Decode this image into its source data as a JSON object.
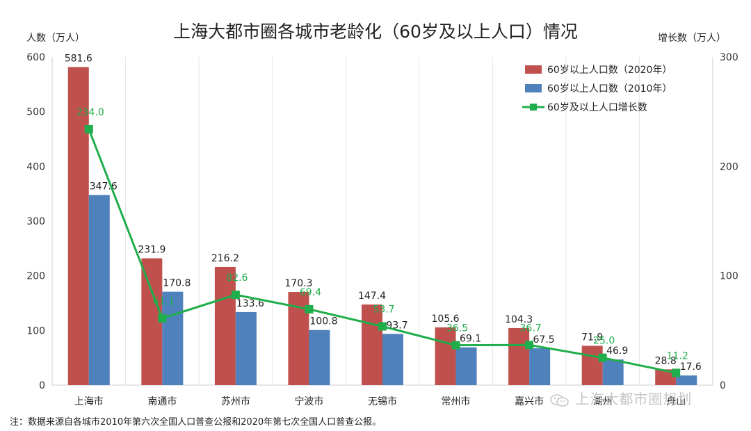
{
  "chart_data": {
    "type": "bar",
    "title": "上海大都市圈各城市老龄化（60岁及以上人口）情况",
    "ylabel": "人数（万人）",
    "y2label": "增长数（万人）",
    "ylim": [
      0,
      600
    ],
    "y2lim": [
      0,
      300
    ],
    "yticks": [
      0,
      100,
      200,
      300,
      400,
      500,
      600
    ],
    "y2ticks": [
      0,
      100,
      200,
      300
    ],
    "categories": [
      "上海市",
      "南通市",
      "苏州市",
      "宁波市",
      "无锡市",
      "常州市",
      "嘉兴市",
      "湖州",
      "舟山"
    ],
    "series": [
      {
        "name": "60岁以上人口数（2020年）",
        "type": "bar",
        "axis": "left",
        "color": "#c0504d",
        "values": [
          581.6,
          231.9,
          216.2,
          170.3,
          147.4,
          105.6,
          104.3,
          71.9,
          28.8
        ]
      },
      {
        "name": "60岁以上人口数（2010年）",
        "type": "bar",
        "axis": "left",
        "color": "#4f81bd",
        "values": [
          347.6,
          170.8,
          133.6,
          100.8,
          93.7,
          69.1,
          67.5,
          46.9,
          17.6
        ]
      },
      {
        "name": "60岁及以上人口增长数",
        "type": "line",
        "axis": "right",
        "color": "#1fae4b",
        "values": [
          234.0,
          61.1,
          82.6,
          69.4,
          53.7,
          36.5,
          36.7,
          25.0,
          11.2
        ]
      }
    ],
    "legend_position": "top-right",
    "grid": true
  },
  "note": "注：数据来源自各城市2010年第六次全国人口普查公报和2020年第七次全国人口普查公报。",
  "watermark": "上海大都市圈规划"
}
